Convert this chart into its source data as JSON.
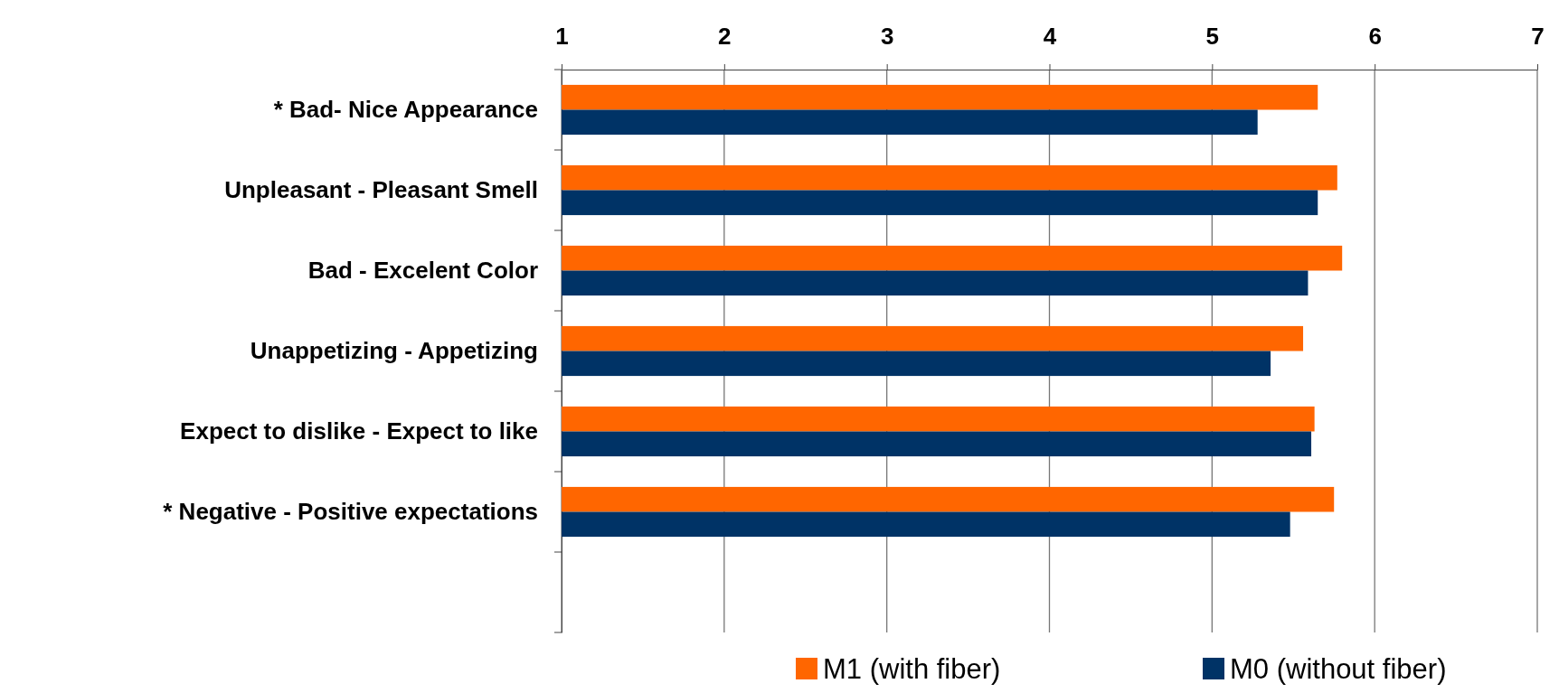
{
  "chart_data": {
    "type": "bar",
    "orientation": "horizontal",
    "categories": [
      "* Bad- Nice Appearance",
      "Unpleasant - Pleasant Smell",
      "Bad - Excelent Color",
      "Unappetizing - Appetizing",
      "Expect to dislike - Expect to like",
      "* Negative - Positive expectations",
      null
    ],
    "series": [
      {
        "name": "M1 (with fiber)",
        "color": "#ff6600",
        "values": [
          5.65,
          5.77,
          5.8,
          5.56,
          5.63,
          5.75,
          null
        ]
      },
      {
        "name": "M0 (without fiber)",
        "color": "#003366",
        "values": [
          5.28,
          5.65,
          5.59,
          5.36,
          5.61,
          5.48,
          null
        ]
      }
    ],
    "xlim": [
      1,
      7
    ],
    "xticks": [
      1,
      2,
      3,
      4,
      5,
      6,
      7
    ],
    "grid": "x",
    "legend": "bottom"
  }
}
